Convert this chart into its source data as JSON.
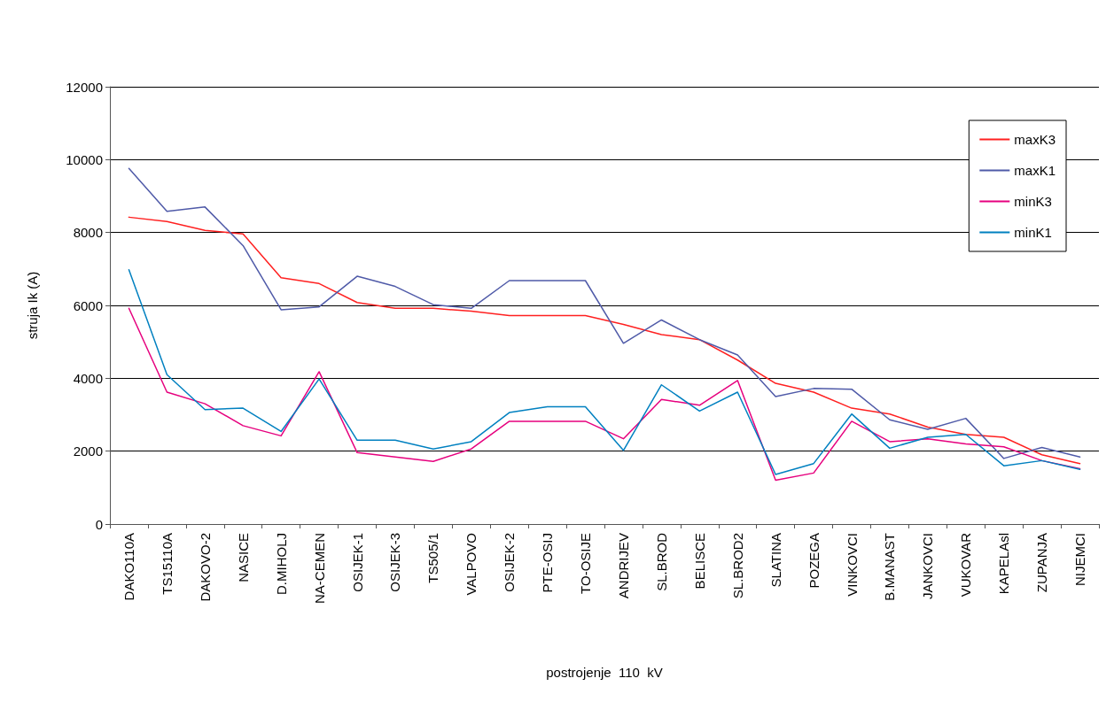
{
  "chart_data": {
    "type": "line",
    "xlabel": "postrojenje  110  kV",
    "ylabel": "struja Ik (A)",
    "categories": [
      "DAKO110A",
      "TS15110A",
      "DAKOVO-2",
      "NASICE",
      "D.MIHOLJ",
      "NA-CEMEN",
      "OSIJEK-1",
      "OSIJEK-3",
      "TS505/1",
      "VALPOVO",
      "OSIJEK-2",
      "PTE-OSIJ",
      "TO-OSIJE",
      "ANDRIJEV",
      "SL.BROD",
      "BELISCE",
      "SL.BROD2",
      "SLATINA",
      "POZEGA",
      "VINKOVCI",
      "B.MANAST",
      "JANKOVCI",
      "VUKOVAR",
      "KAPELAsl",
      "ZUPANJA",
      "NIJEMCI"
    ],
    "series": [
      {
        "name": "maxK3",
        "color": "#ff2020",
        "values": [
          8420,
          8300,
          8060,
          7960,
          6760,
          6600,
          6080,
          5920,
          5920,
          5840,
          5720,
          5720,
          5720,
          5480,
          5200,
          5060,
          4500,
          3860,
          3620,
          3180,
          3020,
          2660,
          2460,
          2380,
          1900,
          1660
        ]
      },
      {
        "name": "maxK1",
        "color": "#4f5aa8",
        "values": [
          9760,
          8580,
          8700,
          7640,
          5880,
          5960,
          6800,
          6520,
          6020,
          5920,
          6680,
          6680,
          6680,
          4960,
          5600,
          5060,
          4640,
          3500,
          3720,
          3700,
          2860,
          2600,
          2900,
          1800,
          2100,
          1840
        ]
      },
      {
        "name": "minK3",
        "color": "#e6007e",
        "values": [
          5920,
          3620,
          3300,
          2700,
          2420,
          4180,
          1960,
          1840,
          1720,
          2060,
          2820,
          2820,
          2820,
          2340,
          3420,
          3260,
          3940,
          1200,
          1400,
          2820,
          2260,
          2340,
          2200,
          2120,
          1740,
          1520
        ]
      },
      {
        "name": "minK1",
        "color": "#0080c0",
        "values": [
          6980,
          4100,
          3140,
          3180,
          2540,
          3980,
          2300,
          2300,
          2060,
          2260,
          3060,
          3220,
          3220,
          2020,
          3820,
          3100,
          3620,
          1360,
          1660,
          3020,
          2080,
          2380,
          2460,
          1600,
          1740,
          1500
        ]
      }
    ],
    "ylim": [
      0,
      12000
    ],
    "yticks": [
      0,
      2000,
      4000,
      6000,
      8000,
      10000,
      12000
    ],
    "grid": "y",
    "legend": "top right",
    "marker": "none",
    "line_style": "solid"
  }
}
